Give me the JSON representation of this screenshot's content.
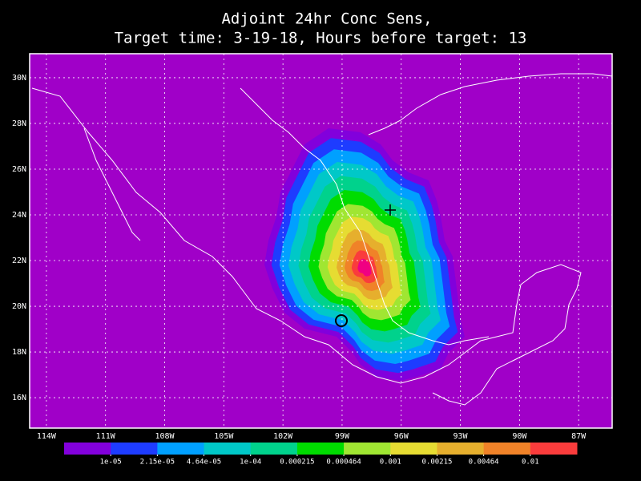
{
  "chart_data": {
    "type": "map",
    "title": "Adjoint 24hr Conc Sens,",
    "subtitle": "Target time: 3-19-18, Hours before target: 13",
    "xlim": [
      -114.85,
      -85.3
    ],
    "ylim": [
      14.67,
      31.05
    ],
    "xticks": [
      {
        "value": -114,
        "label": "114W"
      },
      {
        "value": -111,
        "label": "111W"
      },
      {
        "value": -108,
        "label": "108W"
      },
      {
        "value": -105,
        "label": "105W"
      },
      {
        "value": -102,
        "label": "102W"
      },
      {
        "value": -99,
        "label": "99W"
      },
      {
        "value": -96,
        "label": "96W"
      },
      {
        "value": -93,
        "label": "93W"
      },
      {
        "value": -90,
        "label": "90W"
      },
      {
        "value": -87,
        "label": "87W"
      }
    ],
    "yticks": [
      {
        "value": 16,
        "label": "16N"
      },
      {
        "value": 18,
        "label": "18N"
      },
      {
        "value": 20,
        "label": "20N"
      },
      {
        "value": 22,
        "label": "22N"
      },
      {
        "value": 24,
        "label": "24N"
      },
      {
        "value": 26,
        "label": "26N"
      },
      {
        "value": 28,
        "label": "28N"
      },
      {
        "value": 30,
        "label": "30N"
      }
    ],
    "grid": true,
    "colorbar": {
      "levels": [
        {
          "value": 1e-05,
          "label": "1e-05"
        },
        {
          "value": 2.15e-05,
          "label": "2.15e-05"
        },
        {
          "value": 4.64e-05,
          "label": "4.64e-05"
        },
        {
          "value": 0.0001,
          "label": "1e-04"
        },
        0.000215,
        0.000464,
        0.001,
        0.00215,
        0.00464,
        0.01
      ],
      "colors": [
        "#a000c8",
        "#8200dc",
        "#1e3cff",
        "#00a0ff",
        "#00c8c8",
        "#00d28c",
        "#00dc00",
        "#a0e632",
        "#e6dc32",
        "#e6af2d",
        "#f08228",
        "#fa3c3c",
        "#f00082"
      ]
    }
  }
}
